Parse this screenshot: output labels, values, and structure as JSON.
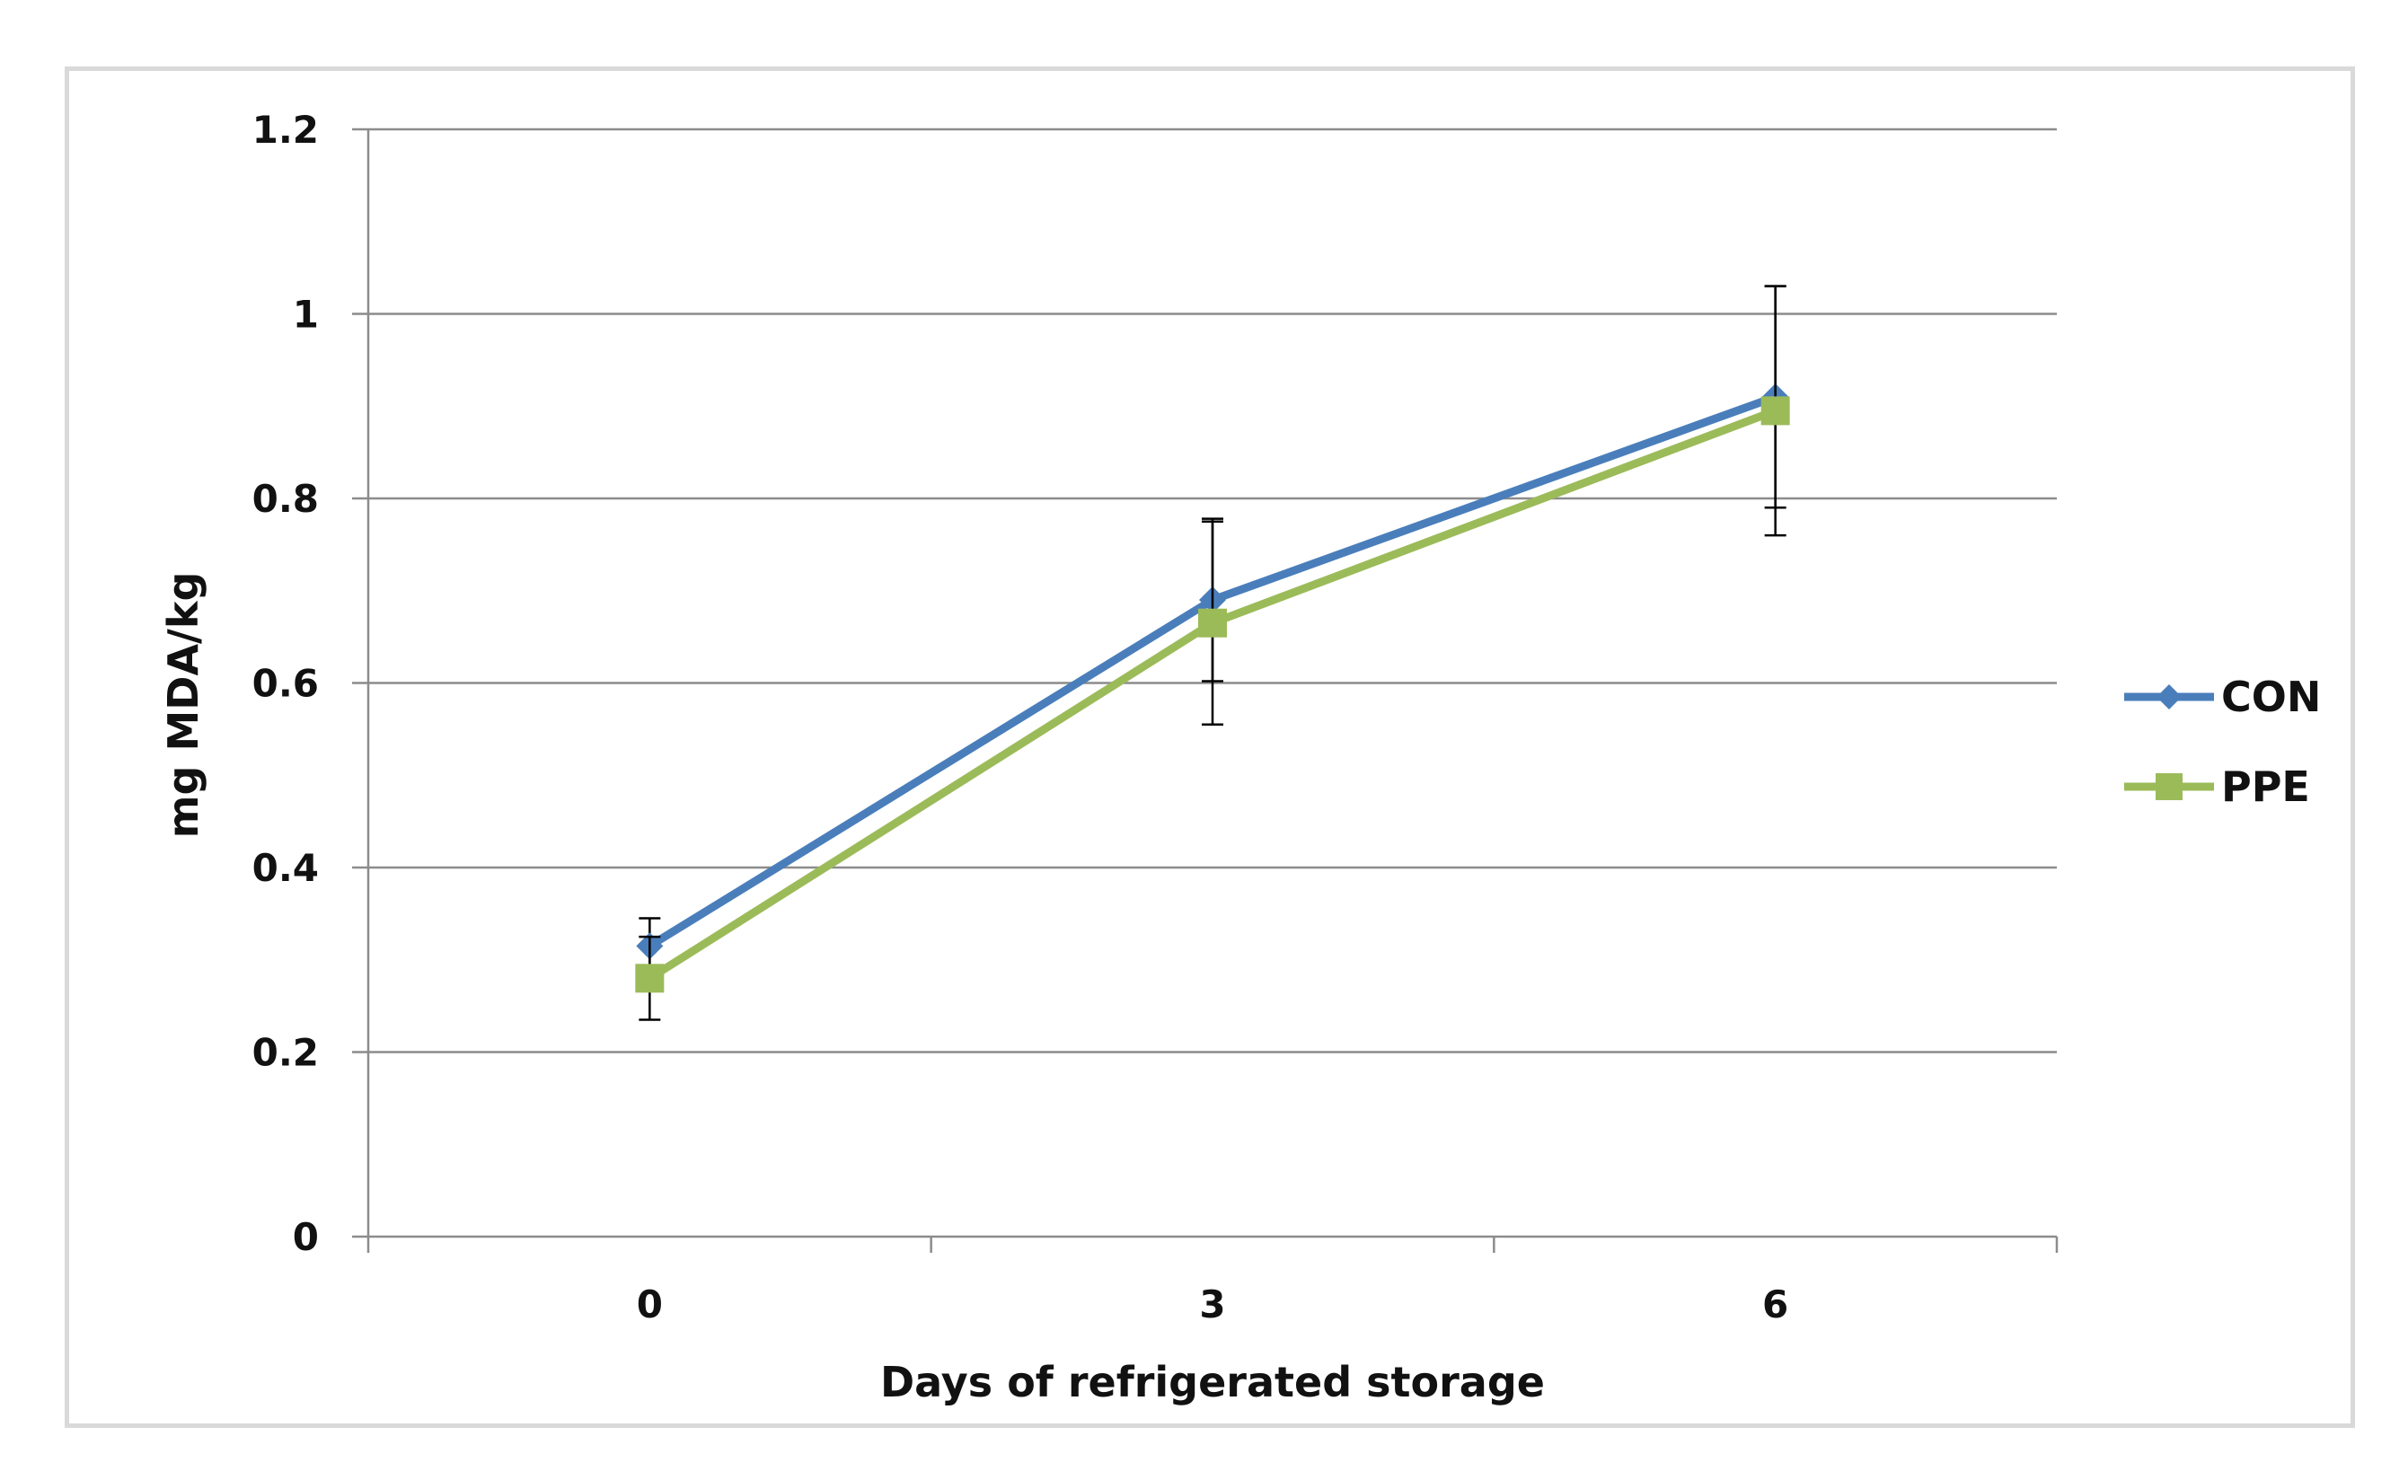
{
  "chart_data": {
    "type": "line",
    "title": "",
    "xlabel": "Days of refrigerated storage",
    "ylabel": "mg MDA/kg",
    "categories": [
      "0",
      "3",
      "6"
    ],
    "ylim": [
      0,
      1.2
    ],
    "yticks": [
      "0",
      "0.2",
      "0.4",
      "0.6",
      "0.8",
      "1",
      "1.2"
    ],
    "grid": "horizontal",
    "legend_position": "right",
    "series": [
      {
        "name": "CON",
        "values": [
          0.315,
          0.69,
          0.91
        ],
        "error": [
          0.03,
          0.088,
          0.12
        ],
        "color": "#4a7ebb",
        "marker": "diamond"
      },
      {
        "name": "PPE",
        "values": [
          0.28,
          0.665,
          0.895
        ],
        "error": [
          0.045,
          0.11,
          0.135
        ],
        "color": "#9bbb59",
        "marker": "square"
      }
    ]
  }
}
